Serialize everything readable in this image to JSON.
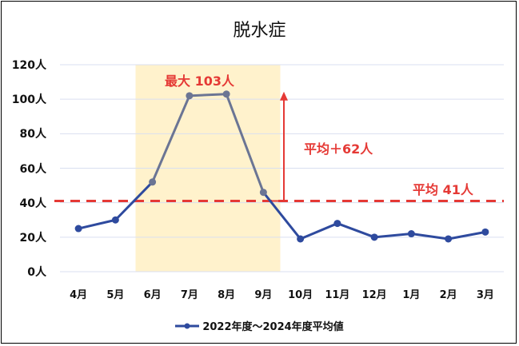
{
  "chart_data": {
    "type": "line",
    "title": "脱水症",
    "xlabel": "",
    "ylabel": "",
    "categories": [
      "4月",
      "5月",
      "6月",
      "7月",
      "8月",
      "9月",
      "10月",
      "11月",
      "12月",
      "1月",
      "2月",
      "3月"
    ],
    "series": [
      {
        "name": "2022年度～2024年度平均値",
        "values": [
          25,
          30,
          52,
          102,
          103,
          46,
          19,
          28,
          20,
          22,
          19,
          23
        ],
        "color": "#2e4a9e"
      }
    ],
    "ylim": [
      0,
      120
    ],
    "yticks": [
      "0人",
      "20人",
      "40人",
      "60人",
      "80人",
      "100人",
      "120人"
    ],
    "grid": true,
    "legend_position": "bottom",
    "highlight_range": {
      "from": "6月",
      "to": "9月",
      "color": "#fff2cc"
    },
    "average_line": {
      "value": 41,
      "label": "平均 41人",
      "color": "#e53935",
      "style": "dashed"
    },
    "annotations": [
      {
        "text": "最大 103人",
        "color": "#e53935"
      },
      {
        "text": "平均＋62人",
        "color": "#e53935",
        "type": "arrow"
      }
    ]
  },
  "labels": {
    "title": "脱水症",
    "max_label": "最大 103人",
    "diff_label": "平均＋62人",
    "avg_label": "平均 41人",
    "legend": "2022年度～2024年度平均値"
  }
}
